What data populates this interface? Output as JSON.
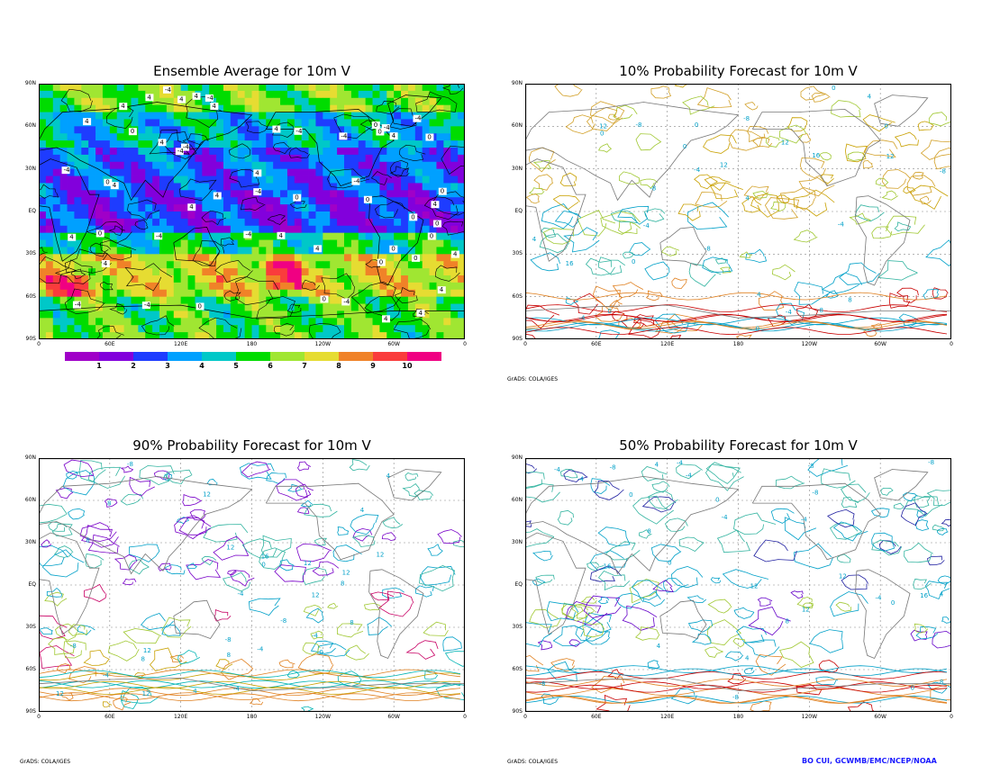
{
  "panels": [
    {
      "id": "ens-avg",
      "title": "Ensemble Average for 10m V"
    },
    {
      "id": "p10",
      "title": "10% Probability Forecast for 10m V"
    },
    {
      "id": "p90",
      "title": "90% Probability Forecast for 10m V"
    },
    {
      "id": "p50",
      "title": "50% Probability Forecast for 10m V"
    }
  ],
  "lat_labels": [
    "90N",
    "60N",
    "30N",
    "EQ",
    "30S",
    "60S",
    "90S"
  ],
  "lon_labels": [
    "0",
    "60E",
    "120E",
    "180",
    "120W",
    "60W",
    "0"
  ],
  "colorbar": {
    "labels": [
      "1",
      "2",
      "3",
      "4",
      "5",
      "6",
      "7",
      "8",
      "9",
      "10"
    ],
    "colors": [
      "#a000c8",
      "#8200dc",
      "#1e3cff",
      "#00a0ff",
      "#00c8c8",
      "#00dc00",
      "#a0e632",
      "#e6dc32",
      "#f08228",
      "#fa3c3c",
      "#f00082"
    ]
  },
  "grads_label": "GrADS: COLA/IGES",
  "credit": "BO CUI, GCWMB/EMC/NCEP/NOAA",
  "contour_labels": [
    "0",
    "4",
    "-4",
    "8",
    "12",
    "16",
    "-8"
  ]
}
